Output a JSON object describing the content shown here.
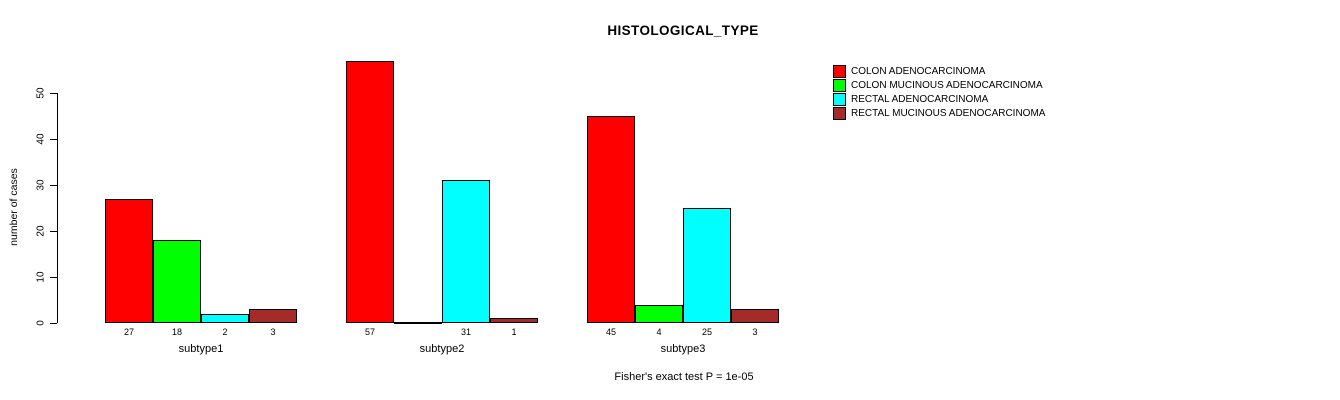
{
  "chart_data": {
    "type": "bar",
    "title": "HISTOLOGICAL_TYPE",
    "xlabel": "",
    "ylabel": "number of cases",
    "categories": [
      "subtype1",
      "subtype2",
      "subtype3"
    ],
    "series": [
      {
        "name": "COLON ADENOCARCINOMA",
        "color": "#FF0000",
        "values": [
          27,
          57,
          45
        ]
      },
      {
        "name": "COLON MUCINOUS ADENOCARCINOMA",
        "color": "#00FF00",
        "values": [
          18,
          0,
          4
        ]
      },
      {
        "name": "RECTAL ADENOCARCINOMA",
        "color": "#00FFFF",
        "values": [
          2,
          31,
          25
        ]
      },
      {
        "name": "RECTAL MUCINOUS ADENOCARCINOMA",
        "color": "#A52A2A",
        "values": [
          3,
          1,
          3
        ]
      }
    ],
    "yticks": [
      0,
      10,
      20,
      30,
      40,
      50
    ],
    "ylim": [
      0,
      57
    ],
    "bar_value_labels": true,
    "hide_zero_value_labels": true,
    "grid": false,
    "legend_position": "top-right",
    "annotation": "Fisher's exact test P = 1e-05",
    "background_color": "#ffffff",
    "bar_border_color": "#000000"
  }
}
